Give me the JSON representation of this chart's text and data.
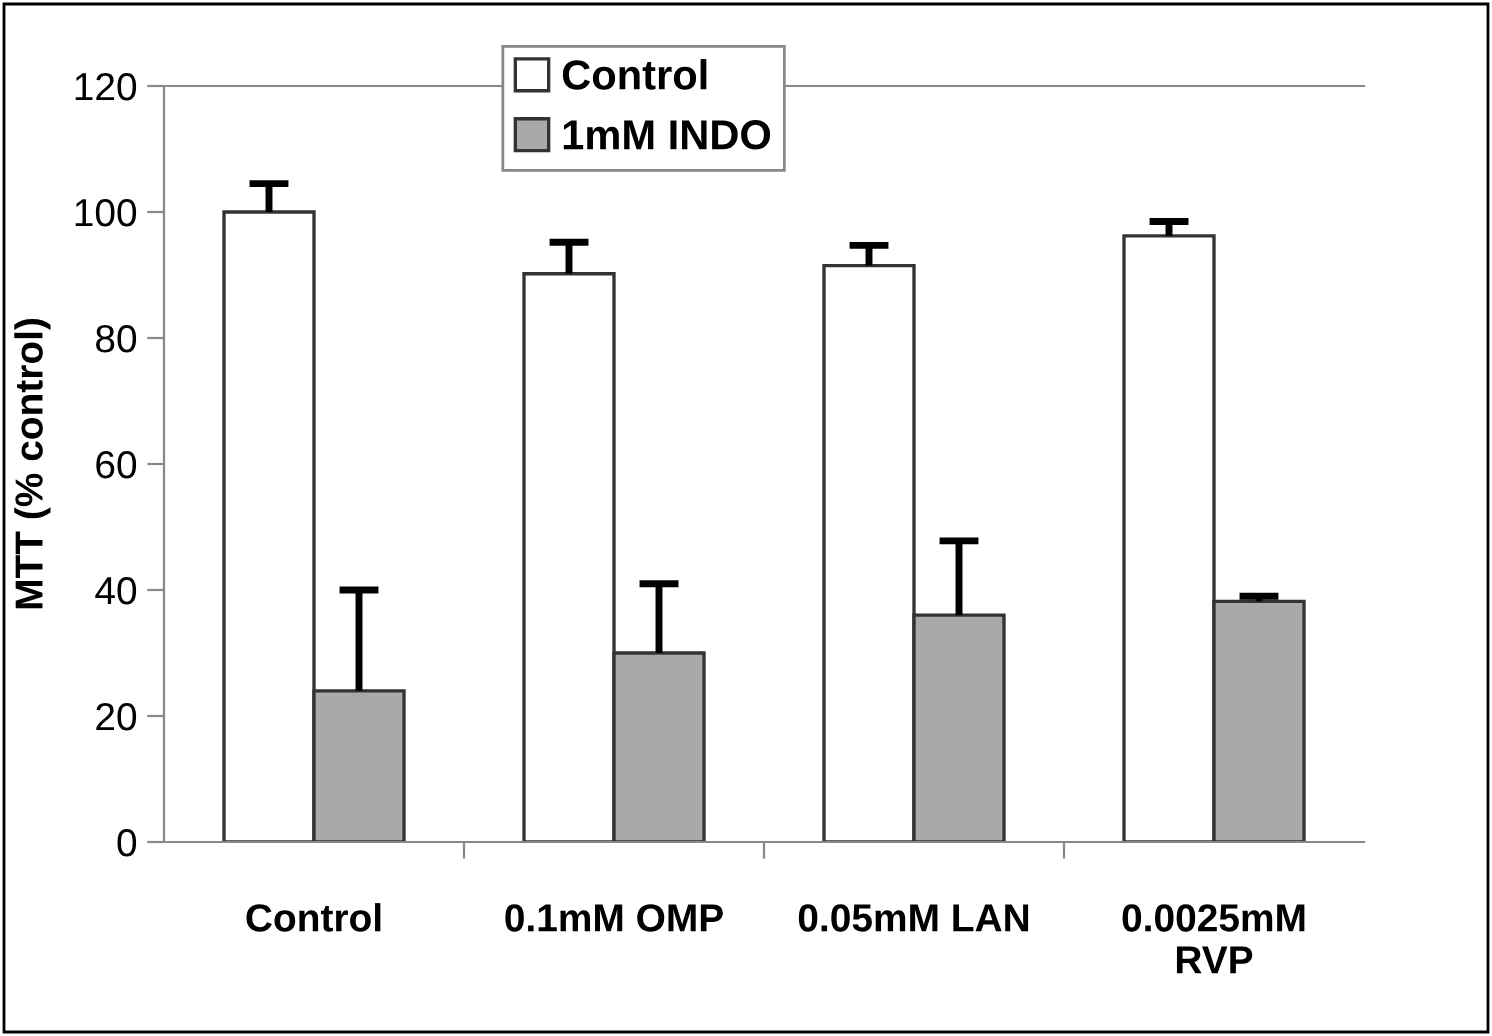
{
  "chart_data": {
    "type": "bar",
    "ylabel": "MTT (% control)",
    "categories": [
      "Control",
      "0.1mM OMP",
      "0.05mM LAN",
      "0.0025mM\nRVP"
    ],
    "series": [
      {
        "name": "Control",
        "color": "#ffffff",
        "values": [
          100,
          90.2,
          91.5,
          96.2
        ],
        "errors": [
          [
            100,
            104.5
          ],
          [
            90.2,
            95.2
          ],
          [
            91.5,
            94.7
          ],
          [
            96.2,
            98.5
          ]
        ]
      },
      {
        "name": "1mM INDO",
        "color": "#a9a9a9",
        "values": [
          24,
          30,
          36,
          38.2
        ],
        "errors": [
          [
            24,
            40
          ],
          [
            30,
            41
          ],
          [
            36,
            47.8
          ],
          [
            38.2,
            39
          ]
        ]
      }
    ],
    "ylim": [
      0,
      120
    ],
    "yticks": [
      0,
      20,
      40,
      60,
      80,
      100,
      120
    ],
    "grid": false,
    "legend": "top"
  }
}
